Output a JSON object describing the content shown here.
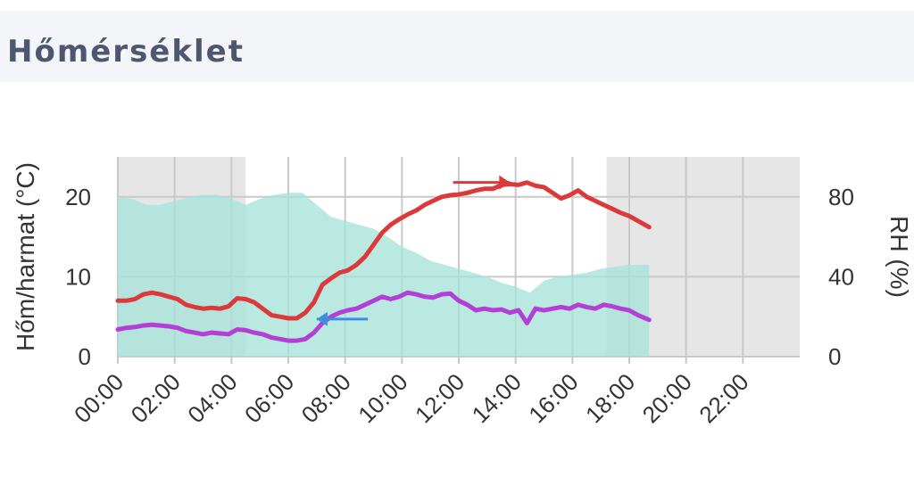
{
  "header": {
    "title": "Hőmérséklet"
  },
  "chart_data": {
    "type": "line",
    "y_left_label": "Hőm/harmat (°C)",
    "y_right_label": "RH (%)",
    "x_range": [
      0,
      24
    ],
    "y_left_range": [
      0,
      25
    ],
    "y_right_range": [
      0,
      100
    ],
    "x_ticks": [
      "00:00",
      "02:00",
      "04:00",
      "06:00",
      "08:00",
      "10:00",
      "12:00",
      "14:00",
      "16:00",
      "18:00",
      "20:00",
      "22:00"
    ],
    "x_tick_values": [
      0,
      2,
      4,
      6,
      8,
      10,
      12,
      14,
      16,
      18,
      20,
      22
    ],
    "y_left_ticks": [
      0,
      10,
      20
    ],
    "y_right_ticks": [
      0,
      40,
      80
    ],
    "grid": true,
    "night_shading": [
      [
        0,
        4.5
      ],
      [
        17.2,
        24
      ]
    ],
    "colors": {
      "temperature": "#dc3a3a",
      "dewpoint": "#b33fd6",
      "humidity_fill": "#a6e3d8",
      "night": "#e6e6e6",
      "header_text": "#4f5670",
      "trend_arrow_temp": "#dc3a3a",
      "trend_arrow_dew": "#3a8fe0"
    },
    "series": [
      {
        "axis": "left",
        "style": "line",
        "color": "#dc3a3a",
        "x": [
          0,
          0.3,
          0.6,
          0.9,
          1.2,
          1.5,
          1.8,
          2.1,
          2.4,
          2.7,
          3.0,
          3.3,
          3.6,
          3.9,
          4.2,
          4.5,
          4.8,
          5.1,
          5.4,
          5.7,
          6.0,
          6.3,
          6.6,
          6.9,
          7.2,
          7.5,
          7.8,
          8.1,
          8.4,
          8.7,
          9.0,
          9.3,
          9.6,
          9.9,
          10.2,
          10.5,
          10.8,
          11.1,
          11.4,
          11.7,
          12.0,
          12.3,
          12.6,
          12.9,
          13.2,
          13.5,
          13.8,
          14.1,
          14.4,
          14.7,
          15.0,
          15.3,
          15.6,
          15.9,
          16.2,
          16.5,
          16.8,
          17.1,
          17.4,
          17.7,
          18.0,
          18.3,
          18.7
        ],
        "values": [
          7.0,
          7.0,
          7.2,
          7.8,
          8.0,
          7.8,
          7.5,
          7.2,
          6.5,
          6.2,
          6.0,
          6.1,
          6.0,
          6.3,
          7.3,
          7.2,
          6.8,
          6.0,
          5.2,
          5.0,
          4.8,
          4.8,
          5.5,
          6.8,
          9.0,
          9.8,
          10.5,
          10.8,
          11.5,
          12.5,
          14.0,
          15.5,
          16.5,
          17.2,
          17.8,
          18.3,
          19.0,
          19.5,
          20.0,
          20.2,
          20.3,
          20.5,
          20.8,
          21.0,
          21.0,
          21.5,
          21.6,
          21.5,
          21.8,
          21.4,
          21.2,
          20.5,
          19.8,
          20.2,
          20.8,
          20.0,
          19.5,
          19.0,
          18.5,
          18.0,
          17.6,
          17.0,
          16.2
        ]
      },
      {
        "axis": "left",
        "style": "line",
        "color": "#b33fd6",
        "x": [
          0,
          0.3,
          0.6,
          0.9,
          1.2,
          1.5,
          1.8,
          2.1,
          2.4,
          2.7,
          3.0,
          3.3,
          3.6,
          3.9,
          4.2,
          4.5,
          4.8,
          5.1,
          5.4,
          5.7,
          6.0,
          6.3,
          6.6,
          6.9,
          7.2,
          7.5,
          7.8,
          8.1,
          8.4,
          8.7,
          9.0,
          9.3,
          9.6,
          9.9,
          10.2,
          10.5,
          10.8,
          11.1,
          11.4,
          11.7,
          12.0,
          12.3,
          12.6,
          12.9,
          13.2,
          13.5,
          13.8,
          14.1,
          14.4,
          14.7,
          15.0,
          15.3,
          15.6,
          15.9,
          16.2,
          16.5,
          16.8,
          17.1,
          17.4,
          17.7,
          18.0,
          18.3,
          18.7
        ],
        "values": [
          3.4,
          3.6,
          3.7,
          3.9,
          4.0,
          3.9,
          3.8,
          3.6,
          3.2,
          3.0,
          2.8,
          3.0,
          2.9,
          2.8,
          3.4,
          3.3,
          3.0,
          2.8,
          2.4,
          2.2,
          2.0,
          2.0,
          2.2,
          3.0,
          4.2,
          5.0,
          5.5,
          5.8,
          6.0,
          6.5,
          7.0,
          7.5,
          7.2,
          7.5,
          8.0,
          7.8,
          7.5,
          7.4,
          7.8,
          7.9,
          7.0,
          6.5,
          5.8,
          6.0,
          5.8,
          5.9,
          5.5,
          5.8,
          4.2,
          6.0,
          5.8,
          6.0,
          6.2,
          6.0,
          6.5,
          6.2,
          6.0,
          6.5,
          6.3,
          6.0,
          5.8,
          5.2,
          4.6
        ]
      },
      {
        "axis": "right",
        "style": "area",
        "color": "#a6e3d8",
        "x": [
          0,
          0.5,
          1.0,
          1.5,
          2.0,
          2.5,
          3.0,
          3.5,
          4.0,
          4.5,
          5.0,
          5.5,
          6.0,
          6.5,
          7.0,
          7.5,
          8.0,
          8.5,
          9.0,
          9.5,
          10.0,
          10.5,
          11.0,
          11.5,
          12.0,
          12.5,
          13.0,
          13.5,
          14.0,
          14.5,
          15.0,
          15.5,
          16.0,
          16.5,
          17.0,
          17.5,
          18.0,
          18.7
        ],
        "values": [
          80,
          79,
          76,
          76,
          78,
          80,
          81,
          81,
          79,
          76,
          79,
          81,
          82,
          82,
          76,
          70,
          68,
          66,
          64,
          60,
          55,
          52,
          48,
          46,
          44,
          42,
          40,
          37,
          35,
          32,
          38,
          40,
          41,
          42,
          44,
          45,
          46,
          46
        ]
      }
    ]
  }
}
